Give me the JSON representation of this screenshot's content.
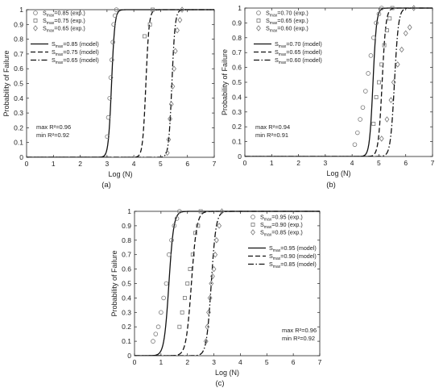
{
  "chart_data": [
    {
      "panel": "(a)",
      "type": "scatter",
      "xlabel": "Log (N)",
      "ylabel": "Probability of Failure",
      "xlim": [
        0,
        7
      ],
      "ylim": [
        0,
        1
      ],
      "xticks": [
        "0",
        "1",
        "2",
        "3",
        "4",
        "5",
        "6",
        "7"
      ],
      "yticks": [
        "0",
        "0.1",
        "0.2",
        "0.3",
        "0.4",
        "0.5",
        "0.6",
        "0.7",
        "0.8",
        "0.9",
        "1"
      ],
      "grid": false,
      "legend_position": "top-left",
      "stats": {
        "max": "max   R²=0.96",
        "min": "min   R²=0.92"
      },
      "series": [
        {
          "name": "S_max=0.85 (exp.)",
          "label_base": "S",
          "label_sub": "max",
          "label_rest": "=0.85 (exp.)",
          "kind": "points",
          "marker": "circle",
          "x": [
            3.01,
            3.05,
            3.1,
            3.14,
            3.18,
            3.22,
            3.25,
            3.3,
            3.35
          ],
          "y": [
            0.14,
            0.27,
            0.4,
            0.54,
            0.66,
            0.78,
            0.9,
            0.96,
            1.0
          ]
        },
        {
          "name": "S_max=0.75 (exp.)",
          "label_base": "S",
          "label_sub": "max",
          "label_rest": "=0.75 (exp.)",
          "kind": "points",
          "marker": "square",
          "x": [
            4.4,
            4.6,
            4.7
          ],
          "y": [
            0.82,
            0.9,
            1.0
          ]
        },
        {
          "name": "S_max=0.65 (exp.)",
          "label_base": "S",
          "label_sub": "max",
          "label_rest": "=0.65 (exp.)",
          "kind": "points",
          "marker": "diamond",
          "x": [
            5.25,
            5.3,
            5.35,
            5.4,
            5.45,
            5.5,
            5.55,
            5.62,
            5.72,
            5.8
          ],
          "y": [
            0.03,
            0.12,
            0.26,
            0.36,
            0.48,
            0.6,
            0.72,
            0.86,
            0.93,
            1.0
          ]
        },
        {
          "name": "S_max=0.85 (model)",
          "label_base": "S",
          "label_sub": "max",
          "label_rest": "=0.85 (model)",
          "kind": "line",
          "dash": "solid",
          "mu": 3.17,
          "s": 0.06
        },
        {
          "name": "S_max=0.75 (model)",
          "label_base": "S",
          "label_sub": "max",
          "label_rest": "=0.75 (model)",
          "kind": "line",
          "dash": "dashed",
          "mu": 4.45,
          "s": 0.06
        },
        {
          "name": "S_max=0.65 (model)",
          "label_base": "S",
          "label_sub": "max",
          "label_rest": "=0.65 (model)",
          "kind": "line",
          "dash": "dashdot",
          "mu": 5.42,
          "s": 0.06
        }
      ]
    },
    {
      "panel": "(b)",
      "type": "scatter",
      "xlabel": "Log (N)",
      "ylabel": "Probability of Failure",
      "xlim": [
        0,
        7
      ],
      "ylim": [
        0,
        1
      ],
      "xticks": [
        "0",
        "1",
        "2",
        "3",
        "4",
        "5",
        "6",
        "7"
      ],
      "yticks": [
        "0",
        "0.1",
        "0.2",
        "0.3",
        "0.4",
        "0.5",
        "0.6",
        "0.7",
        "0.8",
        "0.9",
        "1"
      ],
      "grid": false,
      "legend_position": "top-left",
      "stats": {
        "max": "max   R²=0.94",
        "min": "min   R²=0.91"
      },
      "series": [
        {
          "name": "S_max=0.70 (exp.)",
          "label_base": "S",
          "label_sub": "max",
          "label_rest": "=0.70 (exp.)",
          "kind": "points",
          "marker": "circle",
          "x": [
            4.1,
            4.2,
            4.3,
            4.4,
            4.5,
            4.6,
            4.7,
            4.8,
            4.9,
            5.0,
            5.1
          ],
          "y": [
            0.08,
            0.16,
            0.25,
            0.33,
            0.44,
            0.56,
            0.68,
            0.8,
            0.9,
            0.96,
            1.0
          ]
        },
        {
          "name": "S_max=0.65 (exp.)",
          "label_base": "S",
          "label_sub": "max",
          "label_rest": "=0.65 (exp.)",
          "kind": "points",
          "marker": "square",
          "x": [
            4.8,
            4.9,
            5.0,
            5.1,
            5.2,
            5.3,
            5.4,
            5.5
          ],
          "y": [
            0.22,
            0.4,
            0.5,
            0.62,
            0.75,
            0.85,
            0.93,
            1.0
          ]
        },
        {
          "name": "S_max=0.60 (exp.)",
          "label_base": "S",
          "label_sub": "max",
          "label_rest": "=0.60 (exp.)",
          "kind": "points",
          "marker": "diamond",
          "x": [
            5.1,
            5.3,
            5.45,
            5.55,
            5.7,
            5.85,
            6.0,
            6.15,
            6.3
          ],
          "y": [
            0.12,
            0.25,
            0.38,
            0.5,
            0.62,
            0.72,
            0.83,
            0.87,
            1.0
          ]
        },
        {
          "name": "S_max=0.70 (model)",
          "label_base": "S",
          "label_sub": "max",
          "label_rest": "=0.70 (model)",
          "kind": "line",
          "dash": "solid",
          "mu": 4.78,
          "s": 0.065
        },
        {
          "name": "S_max=0.65 (model)",
          "label_base": "S",
          "label_sub": "max",
          "label_rest": "=0.65 (model)",
          "kind": "line",
          "dash": "dashed",
          "mu": 5.12,
          "s": 0.07
        },
        {
          "name": "S_max=0.60 (model)",
          "label_base": "S",
          "label_sub": "max",
          "label_rest": "=0.60 (model)",
          "kind": "line",
          "dash": "dashdot",
          "mu": 5.58,
          "s": 0.075
        }
      ]
    },
    {
      "panel": "(c)",
      "type": "scatter",
      "xlabel": "Log (N)",
      "ylabel": "Probability of Failure",
      "xlim": [
        0,
        7
      ],
      "ylim": [
        0,
        1
      ],
      "xticks": [
        "0",
        "1",
        "2",
        "3",
        "4",
        "5",
        "6",
        "7"
      ],
      "yticks": [
        "0",
        "0.1",
        "0.2",
        "0.3",
        "0.4",
        "0.5",
        "0.6",
        "0.7",
        "0.8",
        "0.9",
        "1"
      ],
      "grid": false,
      "legend_position": "top-right",
      "stats": {
        "max": "max   R²=0.96",
        "min": "min   R²=0.92"
      },
      "series": [
        {
          "name": "S_max=0.95 (exp.)",
          "label_base": "S",
          "label_sub": "max",
          "label_rest": "=0.95 (exp.)",
          "kind": "points",
          "marker": "circle",
          "x": [
            0.7,
            0.8,
            0.9,
            1.0,
            1.1,
            1.2,
            1.3,
            1.4,
            1.5,
            1.6,
            1.7
          ],
          "y": [
            0.1,
            0.15,
            0.2,
            0.3,
            0.4,
            0.5,
            0.7,
            0.8,
            0.9,
            0.95,
            1.0
          ]
        },
        {
          "name": "S_max=0.90 (exp.)",
          "label_base": "S",
          "label_sub": "max",
          "label_rest": "=0.90 (exp.)",
          "kind": "points",
          "marker": "square",
          "x": [
            1.7,
            1.8,
            1.9,
            2.0,
            2.1,
            2.2,
            2.3,
            2.4,
            2.5
          ],
          "y": [
            0.2,
            0.3,
            0.4,
            0.5,
            0.6,
            0.7,
            0.85,
            0.9,
            1.0
          ]
        },
        {
          "name": "S_max=0.85 (exp.)",
          "label_base": "S",
          "label_sub": "max",
          "label_rest": "=0.85 (exp.)",
          "kind": "points",
          "marker": "diamond",
          "x": [
            2.7,
            2.75,
            2.8,
            2.85,
            2.9,
            2.95,
            3.0,
            3.05,
            3.1,
            3.2,
            3.3
          ],
          "y": [
            0.1,
            0.2,
            0.3,
            0.4,
            0.5,
            0.55,
            0.6,
            0.7,
            0.8,
            0.9,
            1.0
          ]
        },
        {
          "name": "S_max=0.95 (model)",
          "label_base": "S",
          "label_sub": "max",
          "label_rest": "=0.95 (model)",
          "kind": "line",
          "dash": "solid",
          "mu": 1.3,
          "s": 0.09
        },
        {
          "name": "S_max=0.90 (model)",
          "label_base": "S",
          "label_sub": "max",
          "label_rest": "=0.90 (model)",
          "kind": "line",
          "dash": "dashed",
          "mu": 2.15,
          "s": 0.1
        },
        {
          "name": "S_max=0.85 (model)",
          "label_base": "S",
          "label_sub": "max",
          "label_rest": "=0.85 (model)",
          "kind": "line",
          "dash": "dashdot",
          "mu": 2.9,
          "s": 0.09
        }
      ]
    }
  ]
}
